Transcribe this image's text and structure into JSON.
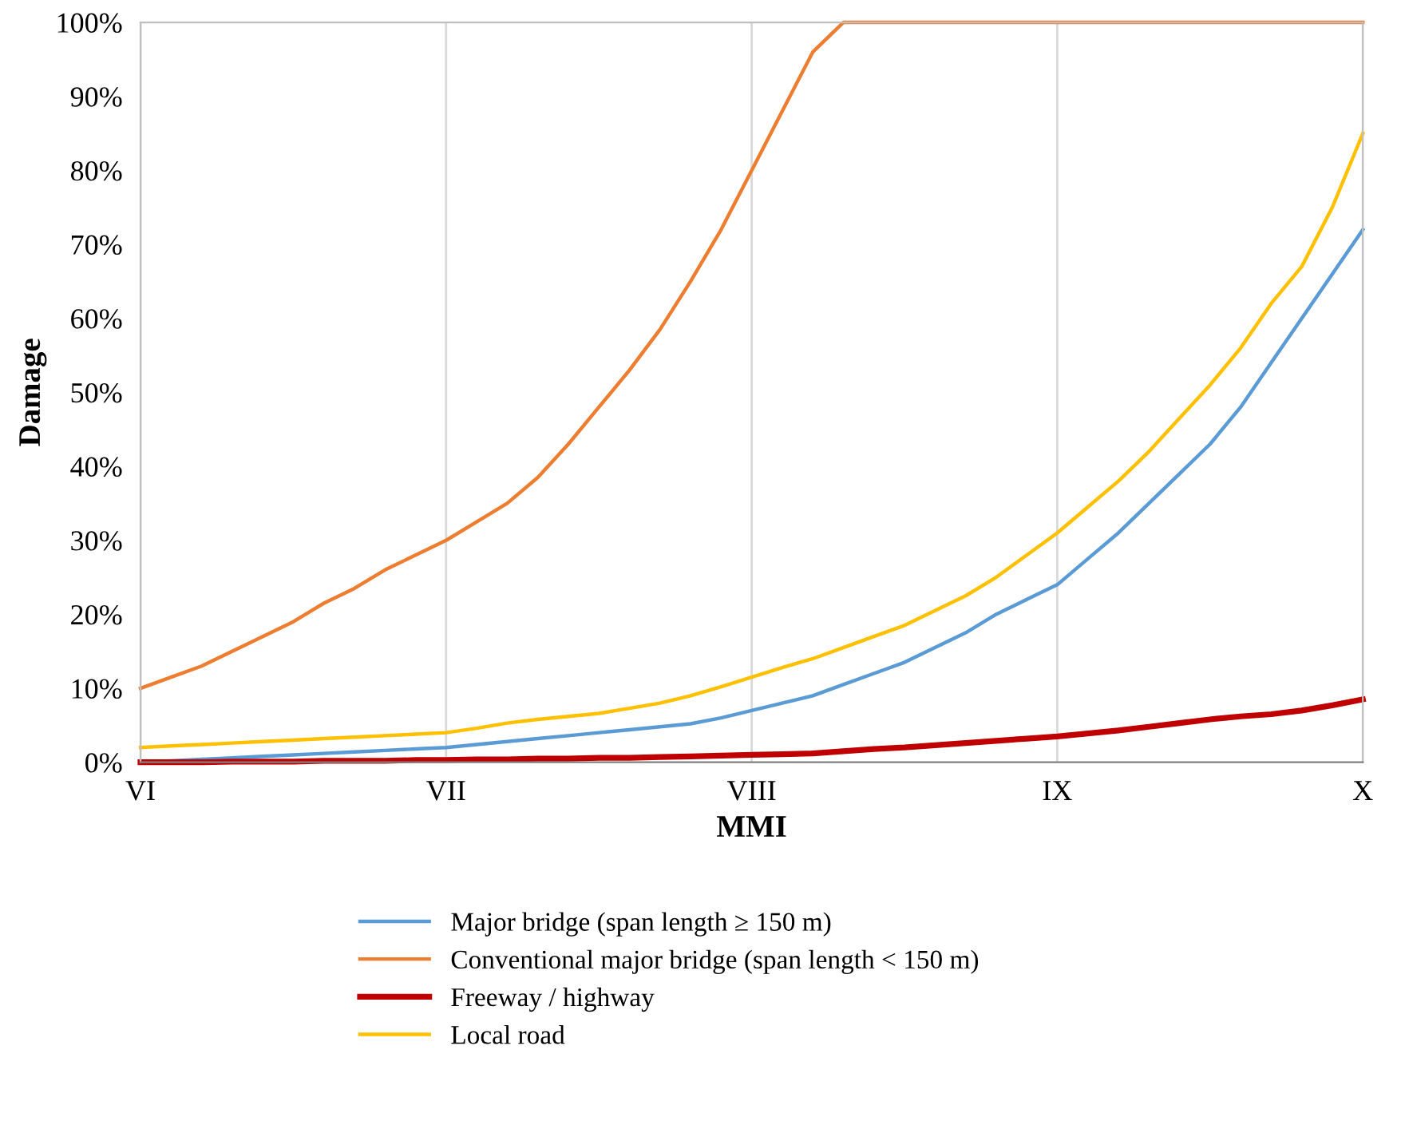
{
  "chart_data": {
    "type": "line",
    "xlabel": "MMI",
    "ylabel": "Damage",
    "categories": [
      "VI",
      null,
      null,
      null,
      null,
      null,
      null,
      null,
      null,
      null,
      "VII",
      null,
      null,
      null,
      null,
      null,
      null,
      null,
      null,
      null,
      "VIII",
      null,
      null,
      null,
      null,
      null,
      null,
      null,
      null,
      null,
      "IX",
      null,
      null,
      null,
      null,
      null,
      null,
      null,
      null,
      null,
      "X"
    ],
    "ylim": [
      0,
      100
    ],
    "yticks": [
      {
        "value": 0,
        "label": "0%"
      },
      {
        "value": 10,
        "label": "10%"
      },
      {
        "value": 20,
        "label": "20%"
      },
      {
        "value": 30,
        "label": "30%"
      },
      {
        "value": 40,
        "label": "40%"
      },
      {
        "value": 50,
        "label": "50%"
      },
      {
        "value": 60,
        "label": "60%"
      },
      {
        "value": 70,
        "label": "70%"
      },
      {
        "value": 80,
        "label": "80%"
      },
      {
        "value": 90,
        "label": "90%"
      },
      {
        "value": 100,
        "label": "100%"
      }
    ],
    "grid": "x",
    "legend": "bottom",
    "marker": "none",
    "line_style": "solid",
    "series": [
      {
        "name": "Major bridge (span length ≥ 150 m)",
        "color": "#5b9bd5",
        "values": [
          0,
          0.2,
          0.4,
          0.6,
          0.8,
          1,
          1.2,
          1.4,
          1.6,
          1.8,
          2,
          2.4,
          2.8,
          3.2,
          3.6,
          4,
          4.4,
          4.8,
          5.2,
          6,
          7,
          8,
          9,
          10.5,
          12,
          13.5,
          15.5,
          17.5,
          20,
          22,
          24,
          27.5,
          31,
          35,
          39,
          43,
          48,
          54,
          60,
          66,
          72
        ]
      },
      {
        "name": "Conventional major bridge (span length < 150 m)",
        "color": "#ed7d31",
        "values": [
          10,
          11.5,
          13,
          15,
          17,
          19,
          21.5,
          23.5,
          26,
          28,
          30,
          32.5,
          35,
          38.5,
          43,
          48,
          53,
          58.5,
          65,
          72,
          80,
          88,
          96,
          100,
          100,
          100,
          100,
          100,
          100,
          100,
          100,
          100,
          100,
          100,
          100,
          100,
          100,
          100,
          100,
          100,
          100
        ]
      },
      {
        "name": "Freeway / highway",
        "color": "#c00000",
        "values": [
          0,
          0,
          0,
          0.1,
          0.1,
          0.1,
          0.2,
          0.2,
          0.2,
          0.3,
          0.3,
          0.4,
          0.4,
          0.5,
          0.5,
          0.6,
          0.6,
          0.7,
          0.8,
          0.9,
          1,
          1.1,
          1.2,
          1.5,
          1.8,
          2,
          2.3,
          2.6,
          2.9,
          3.2,
          3.5,
          3.9,
          4.3,
          4.8,
          5.3,
          5.8,
          6.2,
          6.5,
          7,
          7.7,
          8.5
        ]
      },
      {
        "name": "Local road",
        "color": "#ffc000",
        "values": [
          2,
          2.2,
          2.4,
          2.6,
          2.8,
          3,
          3.2,
          3.4,
          3.6,
          3.8,
          4,
          4.6,
          5.3,
          5.8,
          6.2,
          6.6,
          7.3,
          8,
          9,
          10.2,
          11.5,
          12.8,
          14,
          15.5,
          17,
          18.5,
          20.5,
          22.5,
          25,
          28,
          31,
          34.5,
          38,
          42,
          46.5,
          51,
          56,
          62,
          67,
          75,
          85
        ]
      }
    ]
  }
}
